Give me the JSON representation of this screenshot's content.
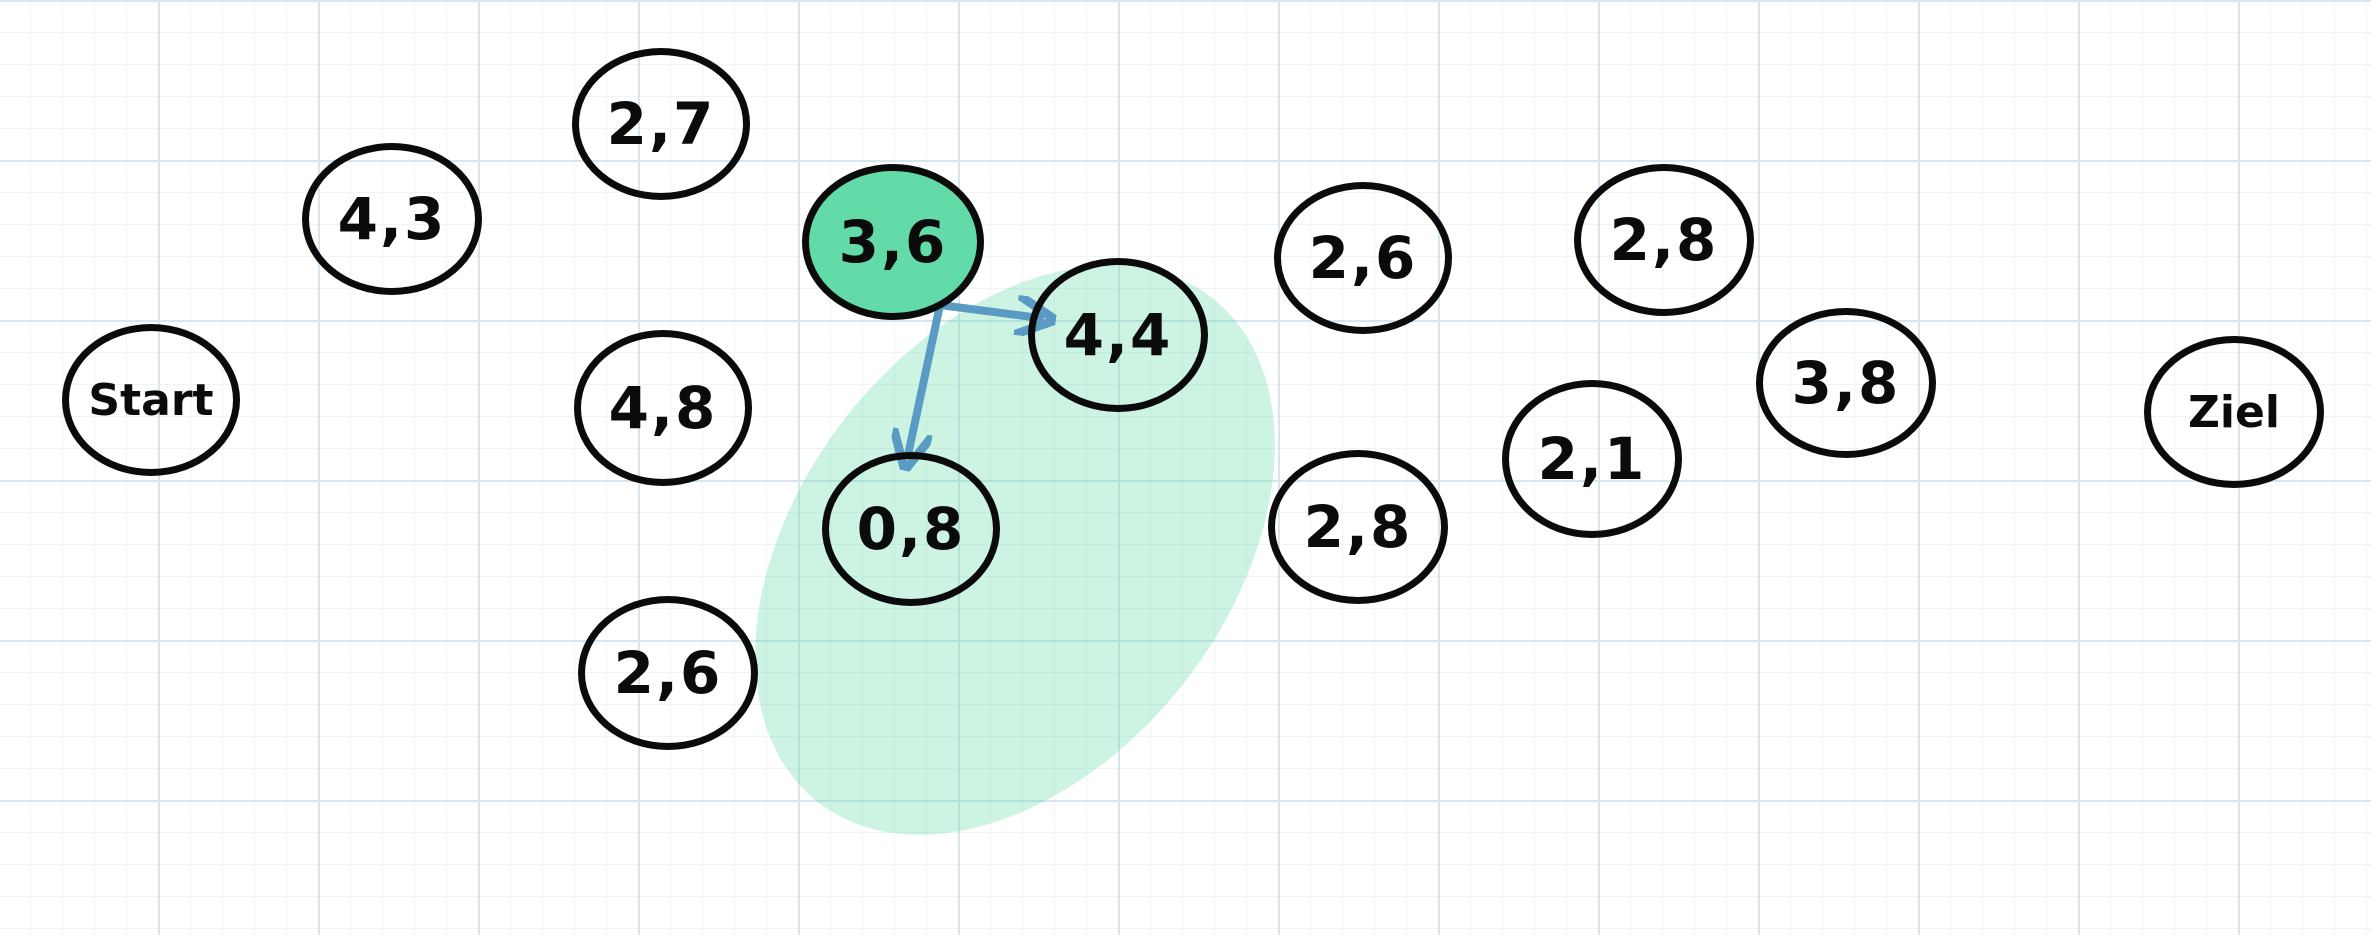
{
  "nodes": [
    {
      "id": "start",
      "label": "Start",
      "active": false
    },
    {
      "id": "n43",
      "label": "4,3",
      "active": false
    },
    {
      "id": "n27",
      "label": "2,7",
      "active": false
    },
    {
      "id": "n48",
      "label": "4,8",
      "active": false
    },
    {
      "id": "n26a",
      "label": "2,6",
      "active": false
    },
    {
      "id": "n36",
      "label": "3,6",
      "active": true
    },
    {
      "id": "n44",
      "label": "4,4",
      "active": false
    },
    {
      "id": "n08",
      "label": "0,8",
      "active": false
    },
    {
      "id": "n26b",
      "label": "2,6",
      "active": false
    },
    {
      "id": "n28a",
      "label": "2,8",
      "active": false
    },
    {
      "id": "n28b",
      "label": "2,8",
      "active": false
    },
    {
      "id": "n21",
      "label": "2,1",
      "active": false
    },
    {
      "id": "n38",
      "label": "3,8",
      "active": false
    },
    {
      "id": "ziel",
      "label": "Ziel",
      "active": false
    }
  ],
  "edges": [
    {
      "from": "n36",
      "to": "n44"
    },
    {
      "from": "n36",
      "to": "n08"
    }
  ],
  "colors": {
    "active_fill": "#63dba8",
    "highlight": "#63dba8",
    "arrow": "#5a9bc4",
    "stroke": "#0b0b0b",
    "grid": "#d7e6ee"
  }
}
